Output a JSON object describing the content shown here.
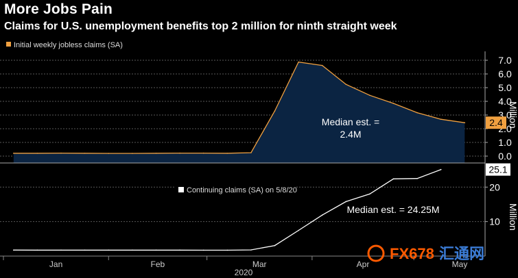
{
  "header": {
    "title": "More Jobs Pain",
    "subtitle": "Claims for U.S. unemployment benefits top 2 million for ninth straight week"
  },
  "colors": {
    "initial_line": "#f0a040",
    "initial_fill": "#0b2442",
    "continuing_line": "#ffffff",
    "last_value_badge_top": "#f0a040",
    "last_value_badge_bottom": "#ffffff"
  },
  "chart_data": [
    {
      "type": "area",
      "panel": "top",
      "series": [
        {
          "name": "Initial weekly jobless claims (SA)",
          "x": [
            "2020-01-04",
            "2020-01-11",
            "2020-01-18",
            "2020-01-25",
            "2020-02-01",
            "2020-02-08",
            "2020-02-15",
            "2020-02-22",
            "2020-02-29",
            "2020-03-07",
            "2020-03-14",
            "2020-03-21",
            "2020-03-28",
            "2020-04-04",
            "2020-04-11",
            "2020-04-18",
            "2020-04-25",
            "2020-05-02",
            "2020-05-09",
            "2020-05-16"
          ],
          "values": [
            0.21,
            0.21,
            0.22,
            0.21,
            0.2,
            0.2,
            0.21,
            0.22,
            0.22,
            0.21,
            0.25,
            3.3,
            6.87,
            6.62,
            5.24,
            4.44,
            3.85,
            3.17,
            2.69,
            2.44
          ]
        }
      ],
      "ylabel": "Million",
      "ylim": [
        -0.5,
        7.5
      ],
      "yticks": [
        "7.0",
        "6.0",
        "5.0",
        "4.0",
        "3.0",
        "2.0",
        "1.0",
        "0.0"
      ],
      "legend": "top-left",
      "last_value_label": "2.4",
      "annotation": {
        "line1": "Median est. =",
        "line2": "2.4M"
      }
    },
    {
      "type": "line",
      "panel": "bottom",
      "series": [
        {
          "name": "Continuing claims (SA) on 5/8/20",
          "x": [
            "2020-01-04",
            "2020-01-11",
            "2020-01-18",
            "2020-01-25",
            "2020-02-01",
            "2020-02-08",
            "2020-02-15",
            "2020-02-22",
            "2020-02-29",
            "2020-03-07",
            "2020-03-14",
            "2020-03-21",
            "2020-03-28",
            "2020-04-04",
            "2020-04-11",
            "2020-04-18",
            "2020-04-25",
            "2020-05-02",
            "2020-05-09"
          ],
          "values": [
            1.75,
            1.73,
            1.73,
            1.72,
            1.73,
            1.73,
            1.73,
            1.72,
            1.7,
            1.7,
            1.78,
            3.06,
            7.45,
            11.9,
            15.8,
            18.0,
            22.4,
            22.5,
            25.1
          ]
        }
      ],
      "ylabel": "Million",
      "ylim": [
        0,
        27
      ],
      "yticks": [
        "20",
        "10"
      ],
      "legend": "top-center",
      "last_value_label": "25.1",
      "annotation": {
        "line1": "Median est. = 24.25M"
      }
    }
  ],
  "xaxis": {
    "months": [
      "Jan",
      "Feb",
      "Mar",
      "Apr",
      "May"
    ],
    "year": "2020"
  },
  "watermark": {
    "text1": "FX678",
    "text2": "汇通网"
  }
}
